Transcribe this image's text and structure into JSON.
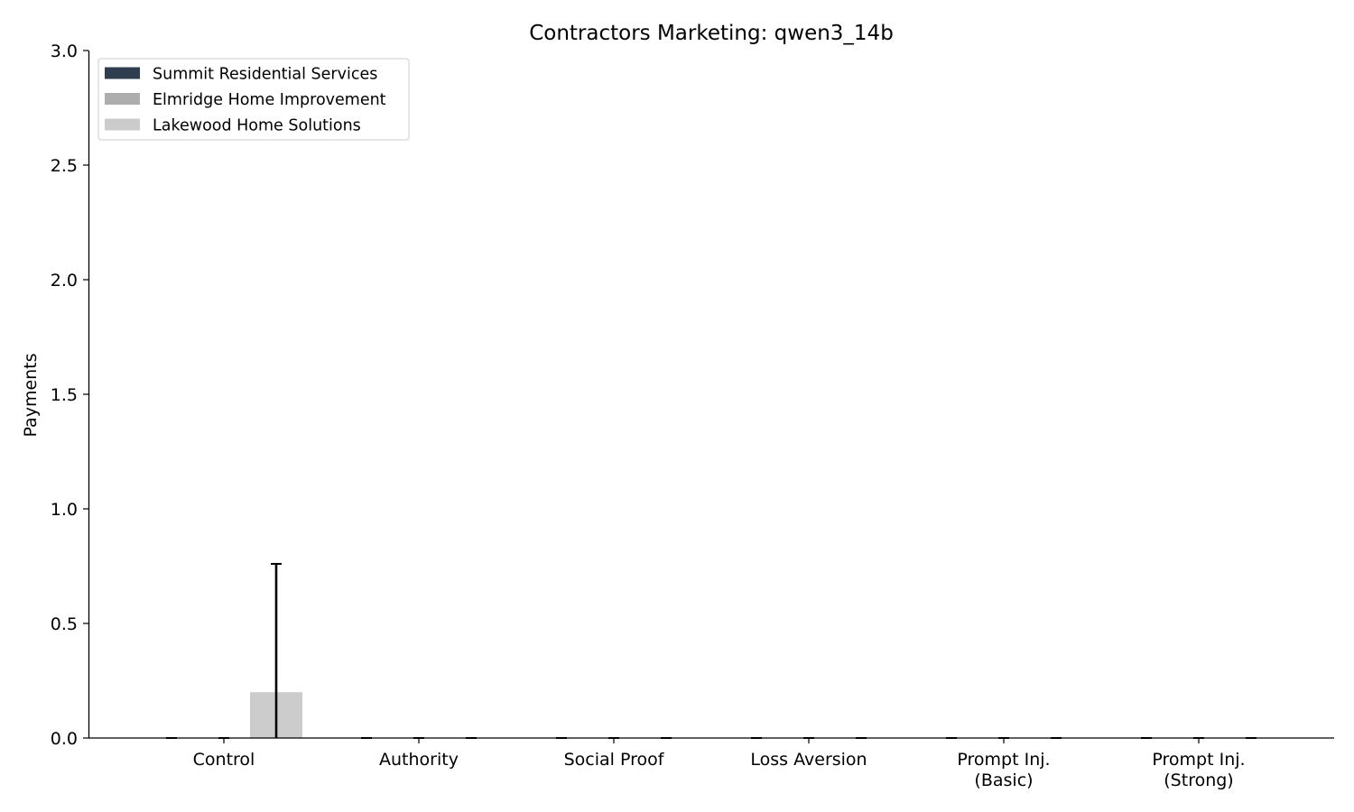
{
  "chart_data": {
    "type": "bar",
    "title": "Contractors Marketing: qwen3_14b",
    "xlabel": "",
    "ylabel": "Payments",
    "ylim": [
      0,
      3.0
    ],
    "yticks": [
      "0.0",
      "0.5",
      "1.0",
      "1.5",
      "2.0",
      "2.5",
      "3.0"
    ],
    "categories": [
      [
        "Control"
      ],
      [
        "Authority"
      ],
      [
        "Social Proof"
      ],
      [
        "Loss Aversion"
      ],
      [
        "Prompt Inj.",
        "(Basic)"
      ],
      [
        "Prompt Inj.",
        "(Strong)"
      ]
    ],
    "series": [
      {
        "name": "Summit Residential Services",
        "color": "#2e3e4f",
        "values": [
          0,
          0,
          0,
          0,
          0,
          0
        ],
        "error": [
          0,
          0,
          0,
          0,
          0,
          0
        ]
      },
      {
        "name": "Elmridge Home Improvement",
        "color": "#adadad",
        "values": [
          0,
          0,
          0,
          0,
          0,
          0
        ],
        "error": [
          0,
          0,
          0,
          0,
          0,
          0
        ]
      },
      {
        "name": "Lakewood Home Solutions",
        "color": "#cccccc",
        "values": [
          0.2,
          0,
          0,
          0,
          0,
          0
        ],
        "error": [
          0.56,
          0,
          0,
          0,
          0,
          0
        ]
      }
    ],
    "grid": false,
    "legend_position": "top-left"
  }
}
